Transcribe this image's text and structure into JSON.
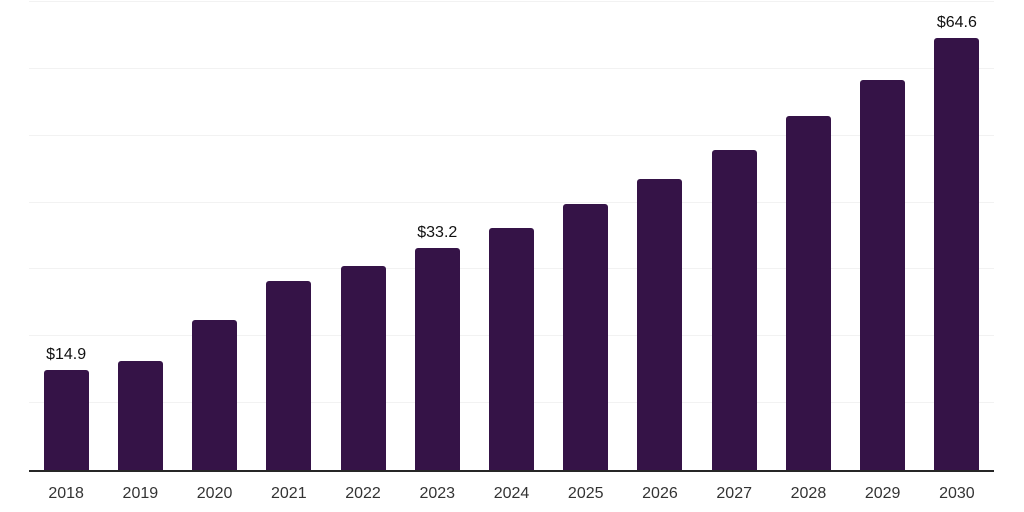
{
  "chart": {
    "background_color": "#ffffff",
    "bar_color": "#351347",
    "axis_line_color": "#262626",
    "gridline_color": "#f2f2f2",
    "value_label_color": "#111111",
    "tick_label_color": "#333333"
  },
  "chart_data": {
    "type": "bar",
    "title": "",
    "xlabel": "",
    "ylabel": "",
    "categories": [
      "2018",
      "2019",
      "2020",
      "2021",
      "2022",
      "2023",
      "2024",
      "2025",
      "2026",
      "2027",
      "2028",
      "2029",
      "2030"
    ],
    "values": [
      14.9,
      16.3,
      22.5,
      28.3,
      30.5,
      33.2,
      36.2,
      39.8,
      43.6,
      47.8,
      53.0,
      58.3,
      64.6
    ],
    "point_labels": [
      "$14.9",
      "",
      "",
      "",
      "",
      "$33.2",
      "",
      "",
      "",
      "",
      "",
      "",
      "$64.6"
    ],
    "ylim": [
      0,
      70
    ],
    "gridline_step": 10,
    "grid": true,
    "legend": false,
    "y_axis_labels_visible": false
  }
}
